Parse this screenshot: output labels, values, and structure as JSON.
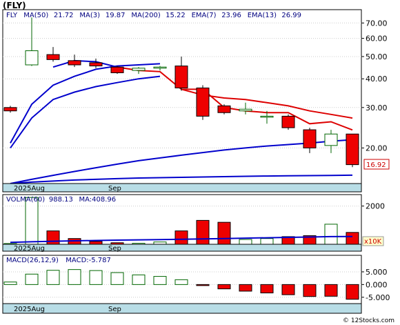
{
  "title": "(FLY)",
  "footer": "© 12Stocks.com",
  "price_panel": {
    "legend": [
      {
        "text": "FLY",
        "color": "#000080"
      },
      {
        "text": "MA(50)",
        "color": "#000080"
      },
      {
        "text": "21.72",
        "color": "#000080"
      },
      {
        "text": "MA(3)",
        "color": "#000080"
      },
      {
        "text": "19.87",
        "color": "#000080"
      },
      {
        "text": "MA(200)",
        "color": "#000080"
      },
      {
        "text": "15.22",
        "color": "#000080"
      },
      {
        "text": "EMA(7)",
        "color": "#000080"
      },
      {
        "text": "23.96",
        "color": "#000080"
      },
      {
        "text": "EMA(13)",
        "color": "#000080"
      },
      {
        "text": "26.99",
        "color": "#000080"
      }
    ],
    "last_price": "16.92",
    "date_labels": [
      "2025Aug",
      "Sep"
    ]
  },
  "volume_panel": {
    "legend": [
      {
        "text": "VOLMA(60)",
        "color": "#000080"
      },
      {
        "text": "988.13",
        "color": "#000080"
      },
      {
        "text": "MA:408.96",
        "color": "#000080"
      }
    ],
    "unit": "x10K",
    "date_labels": [
      "2025Aug",
      "Sep"
    ]
  },
  "macd_panel": {
    "legend": [
      {
        "text": "MACD(26,12,9)",
        "color": "#000080"
      },
      {
        "text": "MACD:-5.787",
        "color": "#000080"
      }
    ],
    "date_labels": [
      "2025Aug",
      "Sep"
    ]
  },
  "chart_data": [
    {
      "type": "candlestick",
      "scale": "log",
      "ylim": [
        14,
        80
      ],
      "y_ticks": [
        {
          "value": 70,
          "label": "70.00"
        },
        {
          "value": 60,
          "label": "60.00"
        },
        {
          "value": 50,
          "label": "50.00"
        },
        {
          "value": 40,
          "label": "40.00"
        },
        {
          "value": 30,
          "label": "30.00"
        },
        {
          "value": 20,
          "label": "20.00"
        }
      ],
      "candles": [
        {
          "o": 30.0,
          "h": 30.5,
          "l": 28.5,
          "c": 29.0
        },
        {
          "o": 46.0,
          "h": 74.0,
          "l": 45.5,
          "c": 53.0
        },
        {
          "o": 51.0,
          "h": 55.0,
          "l": 47.5,
          "c": 48.5
        },
        {
          "o": 48.0,
          "h": 51.0,
          "l": 45.0,
          "c": 46.0
        },
        {
          "o": 47.0,
          "h": 49.0,
          "l": 44.5,
          "c": 45.5
        },
        {
          "o": 45.0,
          "h": 45.5,
          "l": 42.0,
          "c": 42.5
        },
        {
          "o": 43.5,
          "h": 45.0,
          "l": 42.0,
          "c": 44.5
        },
        {
          "o": 44.5,
          "h": 45.5,
          "l": 43.5,
          "c": 45.0
        },
        {
          "o": 45.5,
          "h": 50.0,
          "l": 35.5,
          "c": 36.5
        },
        {
          "o": 36.5,
          "h": 37.5,
          "l": 26.5,
          "c": 27.5
        },
        {
          "o": 30.5,
          "h": 31.0,
          "l": 28.0,
          "c": 28.5
        },
        {
          "o": 29.0,
          "h": 31.5,
          "l": 28.0,
          "c": 29.5
        },
        {
          "o": 27.5,
          "h": 29.0,
          "l": 25.5,
          "c": 27.5
        },
        {
          "o": 27.5,
          "h": 28.0,
          "l": 24.0,
          "c": 24.5
        },
        {
          "o": 24.0,
          "h": 24.5,
          "l": 19.0,
          "c": 20.0
        },
        {
          "o": 20.5,
          "h": 24.0,
          "l": 19.0,
          "c": 23.0
        },
        {
          "o": 23.0,
          "h": 23.0,
          "l": 16.5,
          "c": 16.92
        }
      ],
      "series": [
        {
          "name": "MA(50)",
          "color": "#0000cc",
          "values": [
            14.0,
            14.6,
            15.2,
            15.8,
            16.4,
            17.0,
            17.6,
            18.1,
            18.6,
            19.1,
            19.6,
            20.0,
            20.4,
            20.7,
            21.0,
            21.4,
            21.72
          ]
        },
        {
          "name": "MA(3)",
          "color": "#0000cc",
          "values": [
            20.0,
            27.0,
            32.5,
            35.0,
            37.0,
            38.5,
            40.0,
            41.0,
            null,
            null,
            null,
            null,
            null,
            null,
            null,
            null,
            null
          ]
        },
        {
          "name": "MA(200)",
          "color": "#0000cc",
          "values": [
            14.0,
            14.2,
            14.35,
            14.5,
            14.6,
            14.7,
            14.8,
            14.85,
            14.9,
            14.95,
            15.0,
            15.05,
            15.1,
            15.13,
            15.16,
            15.19,
            15.22
          ]
        },
        {
          "name": "EMA(7)",
          "color": "#0000cc",
          "values": [
            21.0,
            31.0,
            37.5,
            41.0,
            44.0,
            45.5,
            46.0,
            46.5,
            null,
            null,
            null,
            null,
            null,
            null,
            null,
            null,
            null
          ]
        },
        {
          "name": "EMA(7)",
          "color": "#dd0000",
          "values": [
            null,
            null,
            null,
            null,
            null,
            null,
            null,
            null,
            36.0,
            36.0,
            30.0,
            29.0,
            28.5,
            28.5,
            25.5,
            26.0,
            23.96
          ]
        },
        {
          "name": "EMA(13)",
          "color": "#0000cc",
          "values": [
            null,
            null,
            45.0,
            48.0,
            47.5,
            45.0,
            null,
            null,
            null,
            null,
            null,
            null,
            null,
            null,
            null,
            null,
            null
          ]
        },
        {
          "name": "EMA(13)",
          "color": "#dd0000",
          "values": [
            null,
            null,
            null,
            null,
            null,
            45.0,
            43.5,
            43.0,
            36.0,
            34.0,
            33.0,
            32.5,
            31.5,
            30.5,
            29.0,
            28.0,
            26.99
          ]
        }
      ]
    },
    {
      "type": "bar",
      "title": "VOLMA(60)",
      "ylim": [
        0,
        2600
      ],
      "y_ticks": [
        {
          "value": 2000,
          "label": "2000"
        }
      ],
      "values": [
        40,
        2450,
        700,
        300,
        150,
        80,
        50,
        120,
        700,
        1250,
        1150,
        250,
        300,
        400,
        450,
        1050,
        620
      ],
      "up": [
        true,
        true,
        false,
        false,
        false,
        false,
        true,
        true,
        false,
        false,
        false,
        true,
        true,
        false,
        false,
        true,
        false
      ],
      "ma_values": [
        100,
        130,
        160,
        180,
        200,
        215,
        230,
        245,
        260,
        280,
        300,
        320,
        340,
        360,
        380,
        400,
        408.96
      ]
    },
    {
      "type": "bar",
      "title": "MACD(26,12,9)",
      "ylim": [
        -7.5,
        11.5
      ],
      "y_ticks": [
        {
          "value": 5,
          "label": "5.000"
        },
        {
          "value": 0,
          "label": "0.000"
        },
        {
          "value": -5,
          "label": "-5.000"
        }
      ],
      "values": [
        1.0,
        4.1,
        5.6,
        5.9,
        5.5,
        4.7,
        3.8,
        3.2,
        1.9,
        -0.4,
        -1.7,
        -2.6,
        -3.3,
        -4.0,
        -4.7,
        -4.6,
        -5.787
      ],
      "up": [
        true,
        true,
        true,
        true,
        true,
        true,
        true,
        true,
        true,
        false,
        false,
        false,
        false,
        false,
        false,
        false,
        false
      ]
    }
  ]
}
